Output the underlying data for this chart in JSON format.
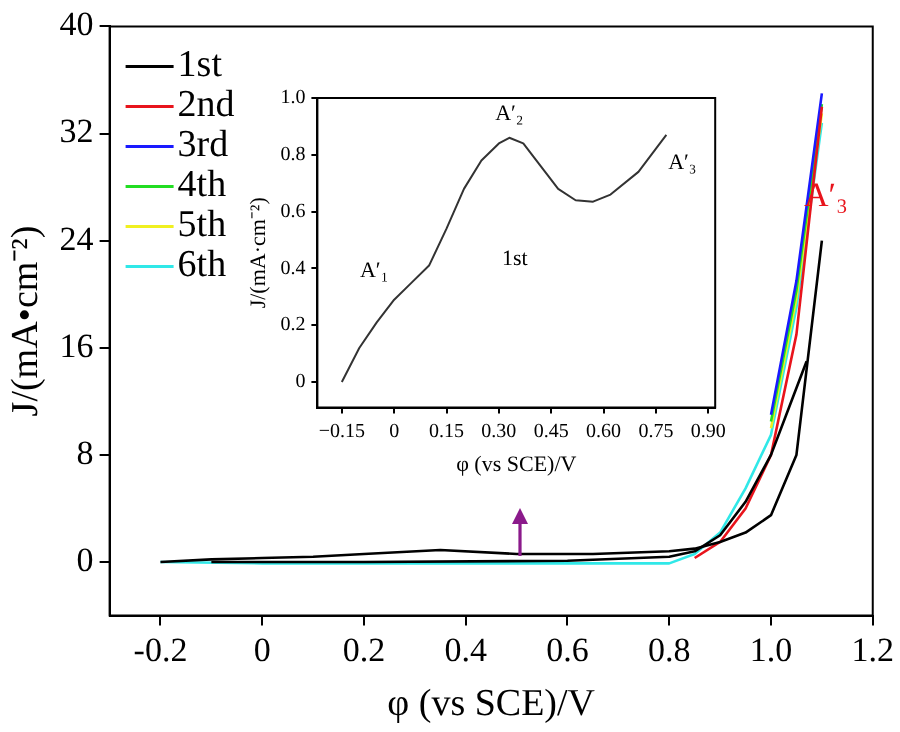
{
  "chart_data": [
    {
      "type": "line",
      "xlabel": "φ (vs SCE)/V",
      "ylabel": "J/(mA•cm⁻²)",
      "xlim": [
        -0.3,
        1.2
      ],
      "ylim": [
        -4,
        40
      ],
      "xticks": [
        -0.2,
        0,
        0.2,
        0.4,
        0.6,
        0.8,
        {
          "value": 1,
          "label": "1.0"
        },
        1.2
      ],
      "yticks": [
        0,
        8,
        16,
        24,
        32,
        40
      ],
      "legend": "top left",
      "marker": "none",
      "grid": false,
      "annotations": [
        {
          "text": "A′₃",
          "x": 1.1,
          "y": 24
        }
      ],
      "series": [
        {
          "name": "1st",
          "color": "#000000",
          "x": [
            -0.2,
            -0.1,
            0,
            0.1,
            0.2,
            0.35,
            0.5,
            0.65,
            0.8,
            0.85,
            0.9,
            0.95,
            1.0,
            1.05,
            1.1
          ],
          "values": [
            0,
            0.2,
            0.3,
            0.4,
            0.6,
            0.9,
            0.6,
            0.6,
            0.8,
            1.0,
            1.5,
            2.2,
            3.5,
            8,
            24
          ]
        },
        {
          "color": "#000000",
          "x": [
            -0.1,
            0.2,
            0.6,
            0.8,
            0.85,
            0.9,
            0.95,
            1.0,
            1.03,
            1.07
          ],
          "values": [
            0,
            0,
            0.1,
            0.4,
            0.8,
            2,
            4.5,
            8,
            11,
            15
          ]
        },
        {
          "name": "2nd",
          "color": "#e8141c",
          "x": [
            0.85,
            0.9,
            0.95,
            1.0,
            1.05,
            1.1
          ],
          "values": [
            0.3,
            1.5,
            4,
            8,
            17,
            34
          ]
        },
        {
          "name": "3rd",
          "color": "#1a1aff",
          "x": [
            1.0,
            1.05,
            1.1
          ],
          "values": [
            11,
            21,
            35
          ]
        },
        {
          "name": "4th",
          "color": "#22dd22",
          "x": [
            1.0,
            1.05,
            1.1
          ],
          "values": [
            10.5,
            20.3,
            34.2
          ]
        },
        {
          "name": "5th",
          "color": "#f0f020",
          "x": [
            1.0,
            1.05,
            1.1
          ],
          "values": [
            10,
            19.7,
            33.5
          ]
        },
        {
          "name": "6th",
          "color": "#30e8e8",
          "x": [
            -0.2,
            0,
            0.4,
            0.8,
            0.85,
            0.9,
            0.95,
            1.0,
            1.05,
            1.1
          ],
          "values": [
            0,
            -0.1,
            -0.1,
            -0.1,
            0.6,
            2.2,
            5.5,
            9.5,
            19,
            32.8
          ]
        }
      ]
    },
    {
      "type": "line",
      "xlabel": "φ (vs SCE)/V",
      "ylabel": "J/(mA·cm⁻²)",
      "xlim": [
        -0.22,
        0.92
      ],
      "ylim": [
        -0.09,
        1
      ],
      "xticks": [
        {
          "value": -0.15,
          "label": "−0.15"
        },
        0,
        {
          "value": 0.15,
          "label": "0.15"
        },
        {
          "value": 0.3,
          "label": "0.30"
        },
        {
          "value": 0.45,
          "label": "0.45"
        },
        {
          "value": 0.6,
          "label": "0.60"
        },
        {
          "value": 0.75,
          "label": "0.75"
        },
        {
          "value": 0.9,
          "label": "0.90"
        }
      ],
      "yticks": [
        0,
        0.2,
        0.4,
        0.6,
        0.8,
        {
          "value": 1,
          "label": "1.0"
        }
      ],
      "marker": "none",
      "grid": false,
      "annotations": [
        {
          "text": "A′₁",
          "x": 0,
          "y": 0.29
        },
        {
          "text": "A′₂",
          "x": 0.33,
          "y": 0.86
        },
        {
          "text": "A′₃",
          "x": 0.78,
          "y": 0.87
        }
      ],
      "series": [
        {
          "name": "1st",
          "color": "#333333",
          "x": [
            -0.15,
            -0.1,
            -0.05,
            0,
            0.05,
            0.1,
            0.15,
            0.2,
            0.25,
            0.3,
            0.33,
            0.37,
            0.42,
            0.47,
            0.52,
            0.57,
            0.62,
            0.7,
            0.78
          ],
          "values": [
            0,
            0.12,
            0.21,
            0.29,
            0.35,
            0.41,
            0.54,
            0.68,
            0.78,
            0.84,
            0.86,
            0.84,
            0.76,
            0.68,
            0.64,
            0.635,
            0.66,
            0.74,
            0.87
          ]
        }
      ]
    }
  ]
}
